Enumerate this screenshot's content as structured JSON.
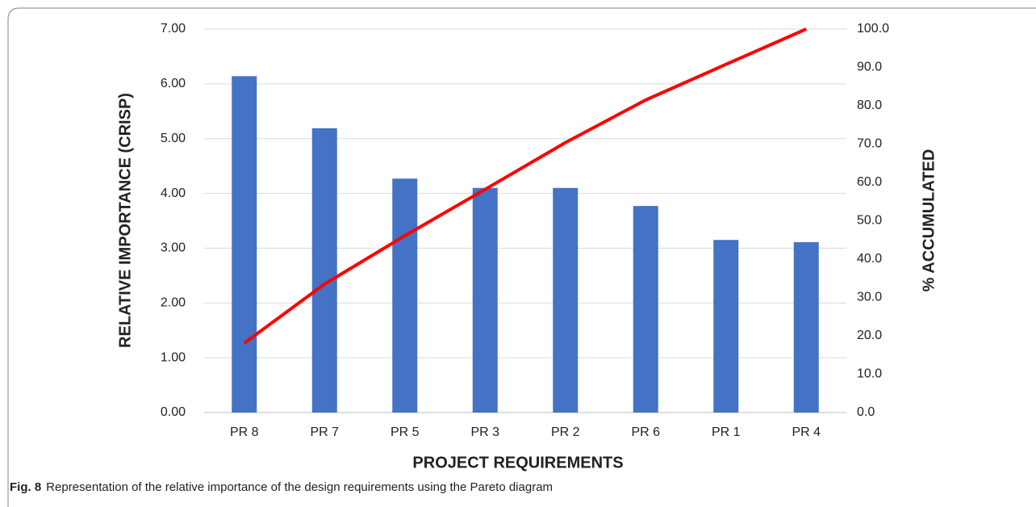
{
  "chart_data": {
    "type": "bar",
    "xlabel": "PROJECT REQUIREMENTS",
    "ylabel": "RELATIVE IMPORTANCE (CRISP)",
    "y2label": "%  ACCUMULATED",
    "categories": [
      "PR 8",
      "PR 7",
      "PR 5",
      "PR 3",
      "PR 2",
      "PR 6",
      "PR 1",
      "PR 4"
    ],
    "series": [
      {
        "type": "bar",
        "color": "#4472c4",
        "values": [
          6.14,
          5.19,
          4.27,
          4.1,
          4.1,
          3.77,
          3.15,
          3.11
        ]
      },
      {
        "type": "line",
        "axis": "y2",
        "color": "#ff0000",
        "values": [
          18.1,
          33.5,
          46.1,
          58.2,
          70.4,
          81.5,
          90.8,
          100
        ]
      }
    ],
    "ylim": [
      0,
      7
    ],
    "yticks": [
      {
        "value": 0,
        "label": "0.00"
      },
      {
        "value": 1,
        "label": "1.00"
      },
      {
        "value": 2,
        "label": "2.00"
      },
      {
        "value": 3,
        "label": "3.00"
      },
      {
        "value": 4,
        "label": "4.00"
      },
      {
        "value": 5,
        "label": "5.00"
      },
      {
        "value": 6,
        "label": "6.00"
      },
      {
        "value": 7,
        "label": "7.00"
      }
    ],
    "y2lim": [
      0,
      100
    ],
    "y2ticks": [
      {
        "value": 0,
        "label": "0.0"
      },
      {
        "value": 10,
        "label": "10.0"
      },
      {
        "value": 20,
        "label": "20.0"
      },
      {
        "value": 30,
        "label": "30.0"
      },
      {
        "value": 40,
        "label": "40.0"
      },
      {
        "value": 50,
        "label": "50.0"
      },
      {
        "value": 60,
        "label": "60.0"
      },
      {
        "value": 70,
        "label": "70.0"
      },
      {
        "value": 80,
        "label": "80.0"
      },
      {
        "value": 90,
        "label": "90.0"
      },
      {
        "value": 100,
        "label": "100.0"
      }
    ],
    "grid": true,
    "caption": {
      "label": "Fig. 8",
      "text": "Representation of the relative importance of the design requirements using the Pareto diagram"
    }
  }
}
